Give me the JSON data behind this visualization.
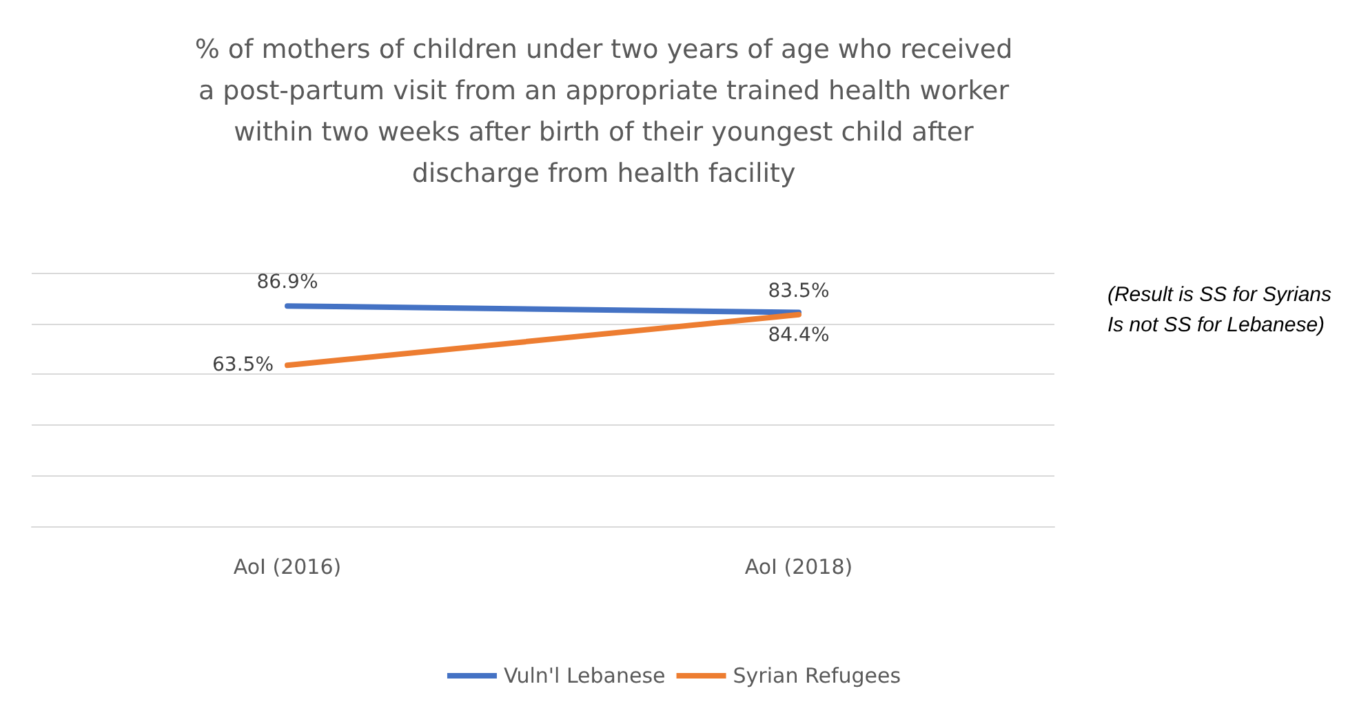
{
  "chart_data": {
    "type": "line",
    "title": "% of mothers of children under two years of age who received\na post-partum visit from an appropriate trained health worker\nwithin two weeks after birth of their youngest child after\ndischarge from health facility",
    "categories": [
      "AoI (2016)",
      "AoI (2018)"
    ],
    "series": [
      {
        "name": "Vuln'l Lebanese",
        "color": "#4472c4",
        "values": [
          86.9,
          84.4
        ],
        "value_labels": [
          "86.9%",
          "84.4%"
        ]
      },
      {
        "name": "Syrian Refugees",
        "color": "#ed7d31",
        "values": [
          63.5,
          83.5
        ],
        "value_labels": [
          "63.5%",
          "83.5%"
        ]
      }
    ],
    "ylim": [
      0,
      100
    ],
    "yticks": [
      {
        "value": 0,
        "label": null
      },
      {
        "value": 20,
        "label": null
      },
      {
        "value": 40,
        "label": null
      },
      {
        "value": 60,
        "label": null
      },
      {
        "value": 80,
        "label": null
      },
      {
        "value": 100,
        "label": null
      }
    ],
    "tick_labels": "x",
    "grid": "y",
    "legend": "bottom",
    "marker": "none",
    "line_style": "solid",
    "annotations": [
      "(Result is SS for Syrians\nIs not SS for Lebanese)"
    ]
  }
}
